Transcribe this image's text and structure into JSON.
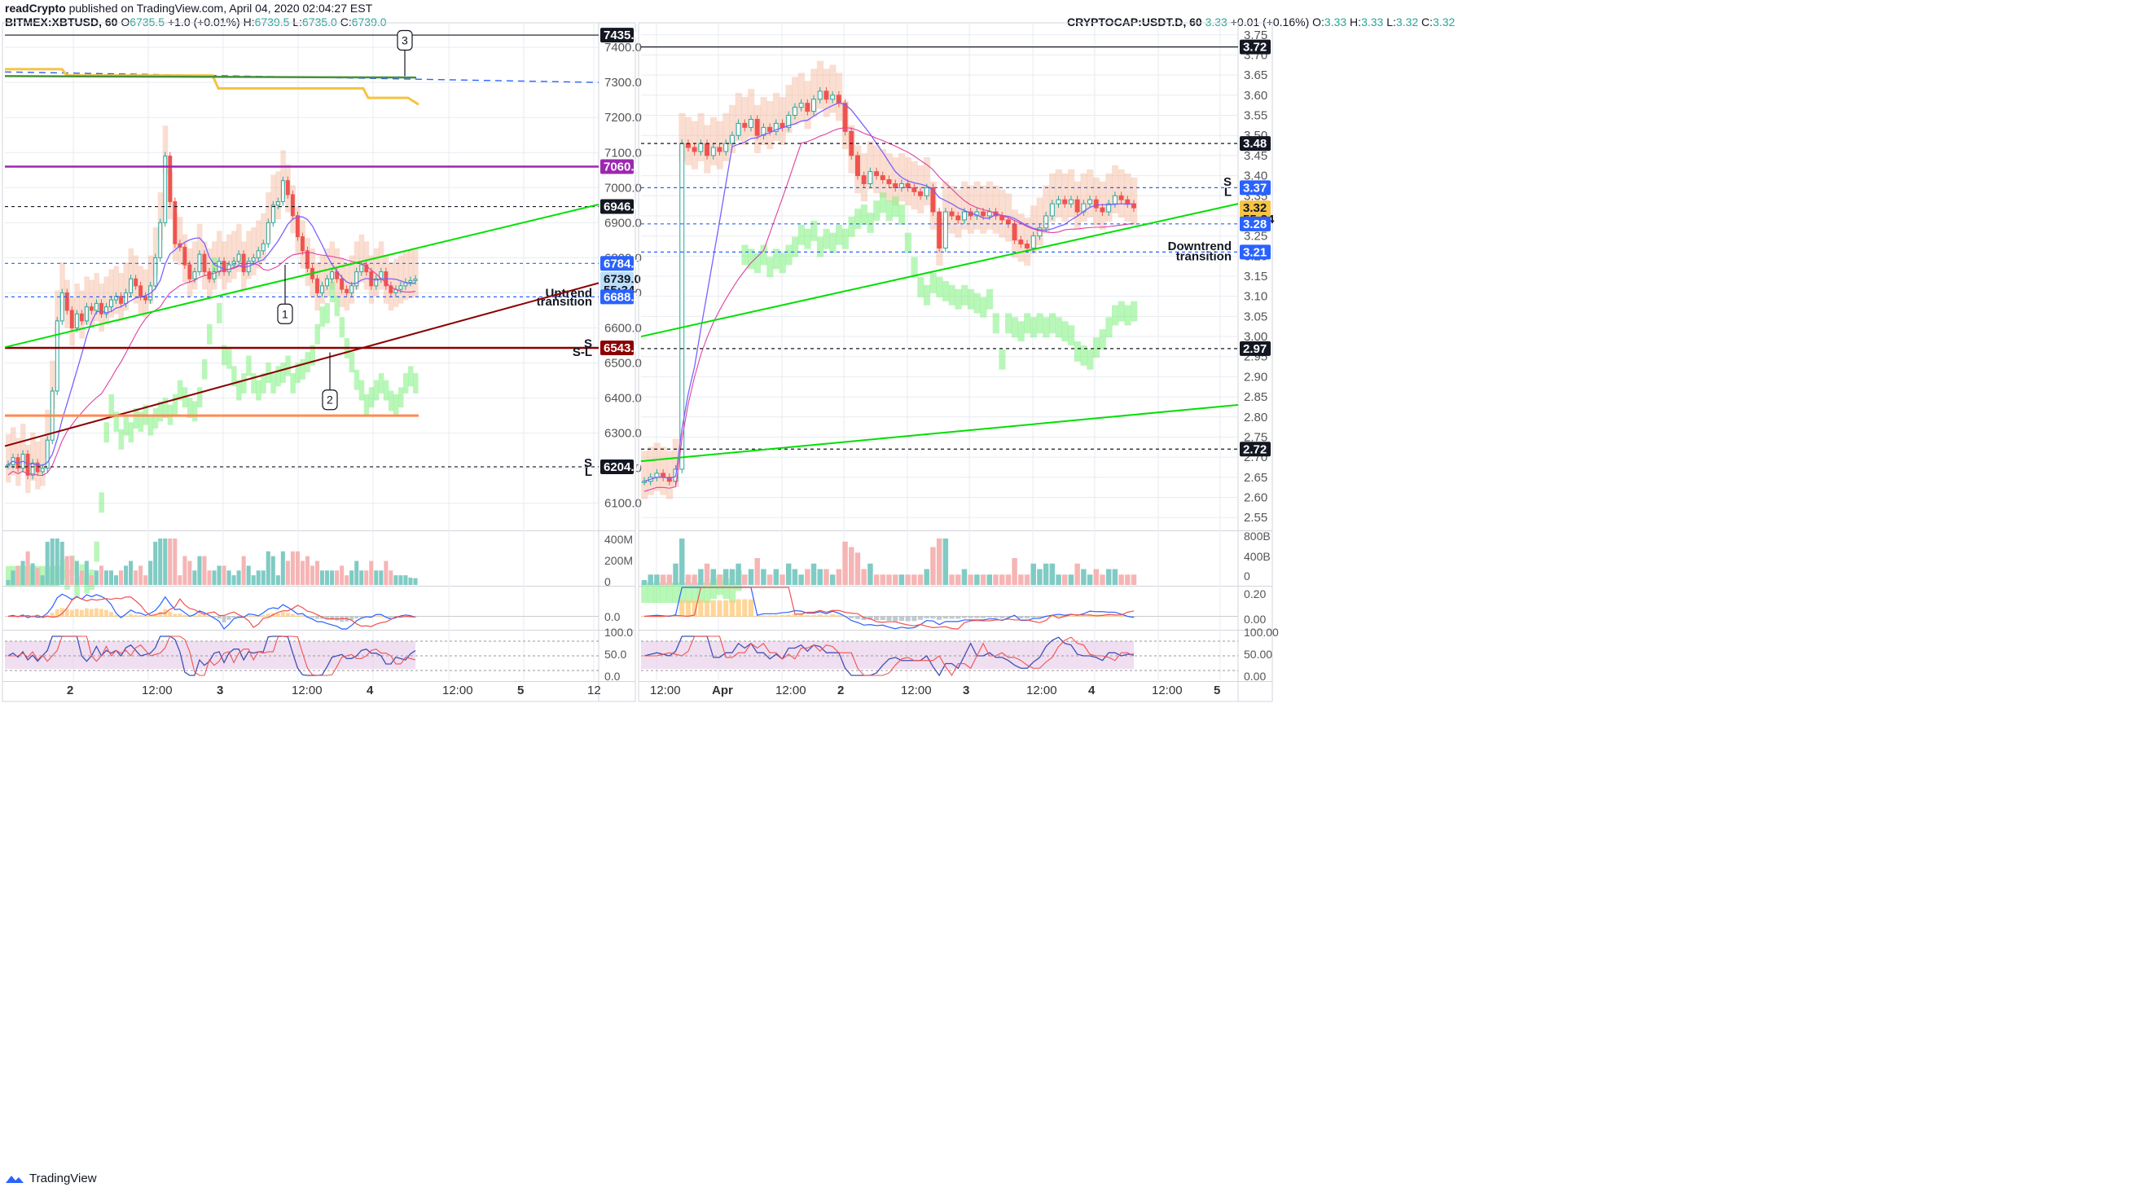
{
  "header": {
    "author": "readCrypto",
    "published": "published on TradingView.com, April 04, 2020 02:04:27 EST"
  },
  "footer": {
    "brand": "TradingView"
  },
  "colors": {
    "up": "#26a69a",
    "down": "#ef5350",
    "bg": "#ffffff",
    "grid": "#e8ebf0",
    "uptrend_line": "#00e000",
    "downtrend_line": "#8b0000",
    "purple": "#9c27b0",
    "cloud_red": "#f5b59a",
    "cloud_green": "#7ff07f",
    "yellow": "#f6c342",
    "blue": "#2962ff",
    "orange": "#ff8a50"
  },
  "chart_data": [
    {
      "type": "candlestick",
      "symbol": {
        "name": "BITMEX:XBTUSD, 60",
        "o": "6735.5",
        "h": "6739.5",
        "l": "6735.0",
        "c": "6739.0",
        "change": "+1.0 (+0.01%)"
      },
      "price_axis": [
        "7400.0",
        "7300.0",
        "7200.0",
        "7100.0",
        "7000.0",
        "6900.0",
        "6800.0",
        "6700.0",
        "6600.0",
        "6500.0",
        "6400.0",
        "6300.0",
        "6200.0",
        "6100.0"
      ],
      "ylim": [
        6025,
        7470
      ],
      "time_axis": [
        "2",
        "12:00",
        "3",
        "12:00",
        "4",
        "12:00",
        "5",
        "12"
      ],
      "price_labels": [
        {
          "value": "7435.0",
          "price": 7435,
          "style": "black"
        },
        {
          "value": "7060.0",
          "price": 7060,
          "style": "purple"
        },
        {
          "value": "6946.0",
          "price": 6946,
          "style": "black"
        },
        {
          "value": "6784.0",
          "price": 6784,
          "style": "blue"
        },
        {
          "value": "6739.0",
          "price": 6739,
          "style": "light"
        },
        {
          "value": "55:34",
          "price": 6708,
          "style": "light"
        },
        {
          "value": "6688.5",
          "price": 6688.5,
          "style": "blue"
        },
        {
          "value": "6543.0",
          "price": 6543,
          "style": "darkred"
        },
        {
          "value": "6204.0",
          "price": 6204,
          "style": "black"
        }
      ],
      "annotations": [
        {
          "text": "Uptrend",
          "price": 6700
        },
        {
          "text": "transition",
          "price": 6675
        },
        {
          "text": "S",
          "price": 6556
        },
        {
          "text": "S-L",
          "price": 6532
        },
        {
          "text": "S",
          "price": 6215
        },
        {
          "text": "L",
          "price": 6190
        }
      ],
      "callouts": [
        "1",
        "2",
        "3"
      ],
      "volume_axis": [
        "400M",
        "200M",
        "0"
      ],
      "macd_axis": [
        "0.0"
      ],
      "rsi_axis": [
        "100.0",
        "50.0",
        "0.0"
      ],
      "closes": [
        6210,
        6230,
        6200,
        6240,
        6180,
        6215,
        6190,
        6200,
        6280,
        6420,
        6620,
        6700,
        6650,
        6600,
        6640,
        6620,
        6660,
        6650,
        6670,
        6640,
        6660,
        6680,
        6690,
        6670,
        6700,
        6740,
        6720,
        6690,
        6680,
        6720,
        6800,
        6900,
        7090,
        6960,
        6840,
        6830,
        6780,
        6740,
        6760,
        6810,
        6760,
        6740,
        6760,
        6790,
        6760,
        6780,
        6790,
        6810,
        6760,
        6790,
        6800,
        6820,
        6840,
        6900,
        6950,
        6960,
        7020,
        6980,
        6920,
        6860,
        6820,
        6770,
        6740,
        6700,
        6720,
        6740,
        6760,
        6740,
        6710,
        6700,
        6720,
        6760,
        6780,
        6760,
        6720,
        6740,
        6760,
        6720,
        6700,
        6710,
        6720,
        6730,
        6735,
        6739
      ]
    },
    {
      "type": "candlestick",
      "symbol": {
        "name": "CRYPTOCAP:USDT.D, 60",
        "o": "3.33",
        "h": "3.33",
        "l": "3.32",
        "c": "3.32",
        "change": "+0.01 (+0.16%)"
      },
      "price_axis": [
        "3.75",
        "3.70",
        "3.65",
        "3.60",
        "3.55",
        "3.50",
        "3.45",
        "3.40",
        "3.35",
        "3.30",
        "3.25",
        "3.20",
        "3.15",
        "3.10",
        "3.05",
        "3.00",
        "2.95",
        "2.90",
        "2.85",
        "2.80",
        "2.75",
        "2.70",
        "2.65",
        "2.60",
        "2.55"
      ],
      "ylim": [
        2.52,
        3.78
      ],
      "time_axis": [
        "12:00",
        "Apr",
        "12:00",
        "2",
        "12:00",
        "3",
        "12:00",
        "4",
        "12:00",
        "5"
      ],
      "price_labels": [
        {
          "value": "3.72",
          "price": 3.72,
          "style": "black"
        },
        {
          "value": "3.48",
          "price": 3.48,
          "style": "black"
        },
        {
          "value": "3.37",
          "price": 3.37,
          "style": "blue"
        },
        {
          "value": "3.32",
          "price": 3.32,
          "style": "yellow"
        },
        {
          "value": "55:34",
          "price": 3.292,
          "style": "yellow"
        },
        {
          "value": "3.28",
          "price": 3.28,
          "style": "blue"
        },
        {
          "value": "3.21",
          "price": 3.21,
          "style": "blue"
        },
        {
          "value": "2.97",
          "price": 2.97,
          "style": "black"
        },
        {
          "value": "2.72",
          "price": 2.72,
          "style": "black"
        }
      ],
      "annotations": [
        {
          "text": "S",
          "price": 3.385
        },
        {
          "text": "L",
          "price": 3.36
        },
        {
          "text": "Downtrend",
          "price": 3.225
        },
        {
          "text": "transition",
          "price": 3.2
        }
      ],
      "volume_axis": [
        "800B",
        "400B",
        "0"
      ],
      "macd_axis": [
        "0.20",
        "0.00"
      ],
      "rsi_axis": [
        "100.00",
        "50.00",
        "0.00"
      ],
      "closes": [
        2.64,
        2.65,
        2.66,
        2.65,
        2.64,
        2.67,
        3.48,
        3.47,
        3.46,
        3.48,
        3.45,
        3.47,
        3.46,
        3.48,
        3.5,
        3.53,
        3.52,
        3.54,
        3.5,
        3.52,
        3.51,
        3.53,
        3.52,
        3.55,
        3.57,
        3.58,
        3.56,
        3.59,
        3.61,
        3.59,
        3.6,
        3.58,
        3.51,
        3.45,
        3.4,
        3.38,
        3.41,
        3.4,
        3.39,
        3.38,
        3.37,
        3.38,
        3.37,
        3.36,
        3.35,
        3.37,
        3.31,
        3.22,
        3.31,
        3.3,
        3.29,
        3.31,
        3.3,
        3.31,
        3.3,
        3.31,
        3.3,
        3.29,
        3.28,
        3.24,
        3.23,
        3.22,
        3.25,
        3.27,
        3.3,
        3.33,
        3.34,
        3.33,
        3.34,
        3.31,
        3.33,
        3.34,
        3.32,
        3.31,
        3.33,
        3.35,
        3.34,
        3.33,
        3.32
      ]
    }
  ]
}
